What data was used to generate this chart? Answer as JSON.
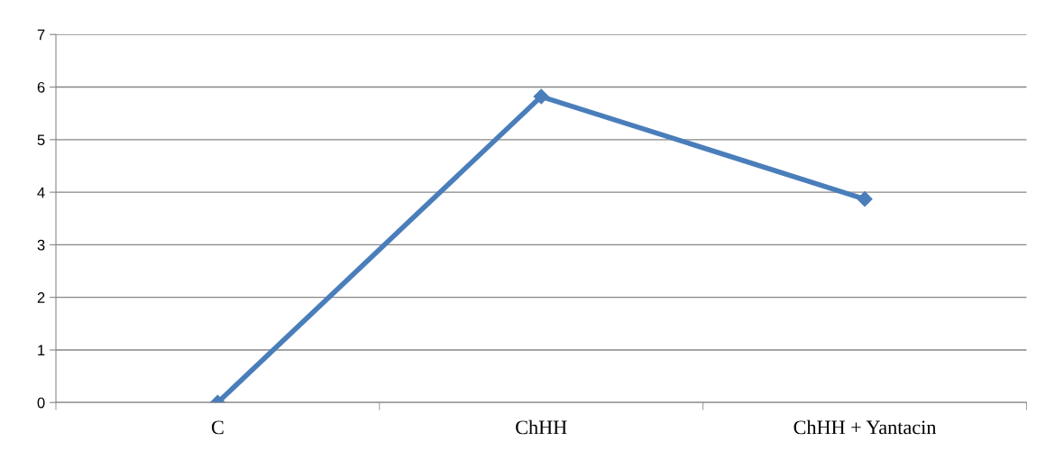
{
  "chart_data": {
    "type": "line",
    "categories": [
      "C",
      "ChHH",
      "ChHH + Yantacin"
    ],
    "series": [
      {
        "color": "#4a7ebb",
        "values": [
          0,
          5.82,
          3.87
        ]
      }
    ],
    "ylim": [
      0,
      7
    ],
    "yticks": [
      0,
      1,
      2,
      3,
      4,
      5,
      6,
      7
    ],
    "grid": "y",
    "marker": "diamond",
    "line_style": "solid",
    "legend": false
  }
}
